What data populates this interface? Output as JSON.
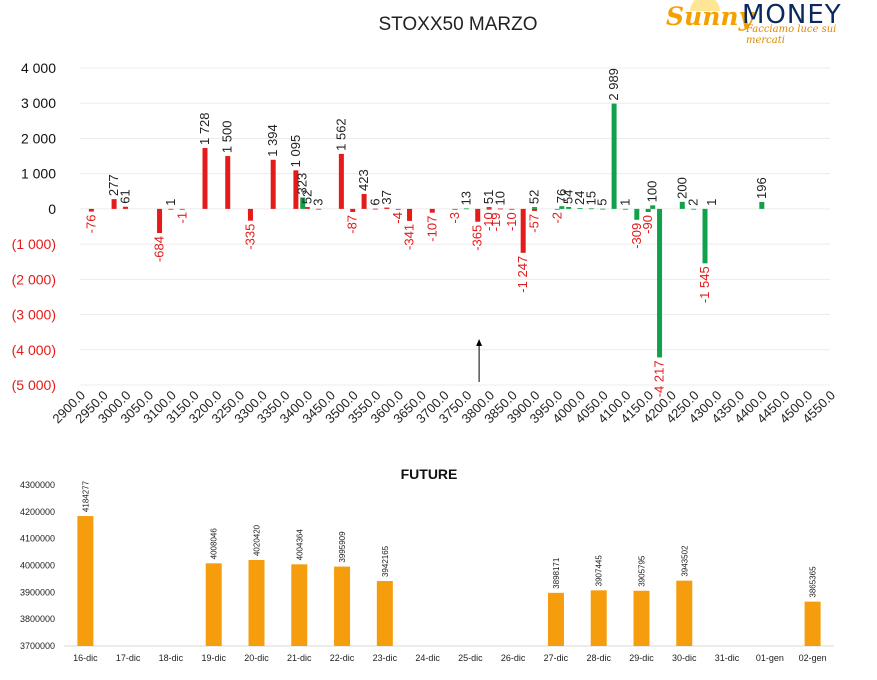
{
  "logo": {
    "brand_first": "Sunny",
    "brand_second": "MONEY",
    "tagline": "Facciamo luce sui mercati",
    "colors": {
      "sunny": "#f5a000",
      "money": "#0a2a5e"
    }
  },
  "chart_data": [
    {
      "type": "bar",
      "title": "STOXX50 MARZO",
      "xlabel": "",
      "ylabel": "",
      "ylim": [
        -5000,
        4000
      ],
      "yticks": [
        4000,
        3000,
        2000,
        1000,
        0,
        -1000,
        -2000,
        -3000,
        -4000,
        -5000
      ],
      "ytick_labels": [
        "4 000",
        "3 000",
        "2 000",
        "1 000",
        "0",
        "(1 000)",
        "(2 000)",
        "(3 000)",
        "(4 000)",
        "(5 000)"
      ],
      "categories": [
        "2900.0",
        "2950.0",
        "3000.0",
        "3050.0",
        "3100.0",
        "3150.0",
        "3200.0",
        "3250.0",
        "3300.0",
        "3350.0",
        "3400.0",
        "3450.0",
        "3500.0",
        "3550.0",
        "3600.0",
        "3650.0",
        "3700.0",
        "3750.0",
        "3800.0",
        "3850.0",
        "3900.0",
        "3950.0",
        "4000.0",
        "4050.0",
        "4100.0",
        "4150.0",
        "4200.0",
        "4250.0",
        "4300.0",
        "4350.0",
        "4400.0",
        "4450.0",
        "4500.0",
        "4550.0"
      ],
      "grid": true,
      "annotation": "arrow pointing up at strike 3800",
      "colors": {
        "red_series": "#e31b1b",
        "green_series": "#12a14b",
        "negative_label": "#e31b1b",
        "positive_label": "#222222"
      },
      "series": [
        {
          "color": "red",
          "points": [
            {
              "x": 2925,
              "v": -76,
              "label": "-76"
            },
            {
              "x": 2975,
              "v": 277,
              "label": "277"
            },
            {
              "x": 3000,
              "v": 61,
              "label": "61"
            },
            {
              "x": 3075,
              "v": -684,
              "label": "-684"
            },
            {
              "x": 3100,
              "v": 1,
              "label": "1"
            },
            {
              "x": 3125,
              "v": -1,
              "label": "-1"
            },
            {
              "x": 3175,
              "v": 1728,
              "label": "1 728"
            },
            {
              "x": 3225,
              "v": 1500,
              "label": "1 500"
            },
            {
              "x": 3275,
              "v": -335,
              "label": "-335"
            },
            {
              "x": 3325,
              "v": 1394,
              "label": "1 394"
            },
            {
              "x": 3375,
              "v": 1095,
              "label": "1 095"
            },
            {
              "x": 3400,
              "v": 52,
              "label": "52"
            },
            {
              "x": 3425,
              "v": 3,
              "label": "3"
            },
            {
              "x": 3475,
              "v": 1562,
              "label": "1 562"
            },
            {
              "x": 3500,
              "v": -87,
              "label": "-87"
            },
            {
              "x": 3525,
              "v": 423,
              "label": "423"
            },
            {
              "x": 3550,
              "v": 6,
              "label": "6"
            },
            {
              "x": 3575,
              "v": 37,
              "label": "37"
            },
            {
              "x": 3600,
              "v": -4,
              "label": "-4"
            },
            {
              "x": 3625,
              "v": -341,
              "label": "-341"
            },
            {
              "x": 3675,
              "v": -107,
              "label": "-107"
            },
            {
              "x": 3725,
              "v": -3,
              "label": "-3"
            },
            {
              "x": 3775,
              "v": -365,
              "label": "-365"
            },
            {
              "x": 3800,
              "v": 51,
              "label": "51"
            },
            {
              "x": 3825,
              "v": 10,
              "label": "10"
            },
            {
              "x": 3850,
              "v": -10,
              "label": "-10"
            },
            {
              "x": 3875,
              "v": -1247,
              "label": "-1 247"
            },
            {
              "x": 3900,
              "v": -57,
              "label": "-57"
            }
          ]
        },
        {
          "color": "green",
          "points": [
            {
              "x": 3390,
              "v": 323,
              "label": "323"
            },
            {
              "x": 3750,
              "v": 13,
              "label": "13"
            },
            {
              "x": 3800,
              "v": -10,
              "label": "-10"
            },
            {
              "x": 3900,
              "v": 52,
              "label": "52"
            },
            {
              "x": 3950,
              "v": -2,
              "label": "-2"
            },
            {
              "x": 3960,
              "v": 76,
              "label": "76"
            },
            {
              "x": 3975,
              "v": 54,
              "label": "54"
            },
            {
              "x": 4000,
              "v": 24,
              "label": "24"
            },
            {
              "x": 4025,
              "v": 15,
              "label": "15"
            },
            {
              "x": 4050,
              "v": 5,
              "label": "5"
            },
            {
              "x": 4075,
              "v": 2989,
              "label": "2 989"
            },
            {
              "x": 4100,
              "v": 1,
              "label": "1"
            },
            {
              "x": 4125,
              "v": -309,
              "label": "-309"
            },
            {
              "x": 4150,
              "v": -90,
              "label": "-90"
            },
            {
              "x": 4160,
              "v": 100,
              "label": "100"
            },
            {
              "x": 4175,
              "v": -4217,
              "label": "-4 217"
            },
            {
              "x": 4225,
              "v": 200,
              "label": "200"
            },
            {
              "x": 4250,
              "v": 2,
              "label": "2"
            },
            {
              "x": 4275,
              "v": -1545,
              "label": "-1 545"
            },
            {
              "x": 4400,
              "v": 196,
              "label": "196"
            }
          ]
        }
      ],
      "extra_labels": [
        {
          "x": 3815,
          "v": -19,
          "label": "-19"
        },
        {
          "x": 4290,
          "v": 1,
          "label": "1"
        }
      ]
    },
    {
      "type": "bar",
      "title": "FUTURE",
      "xlabel": "",
      "ylabel": "",
      "ylim": [
        3700000,
        4300000
      ],
      "yticks": [
        3700000,
        3800000,
        3900000,
        4000000,
        4100000,
        4200000,
        4300000
      ],
      "ytick_labels": [
        "3700000",
        "3800000",
        "3900000",
        "4000000",
        "4100000",
        "4200000",
        "4300000"
      ],
      "categories": [
        "16-dic",
        "17-dic",
        "18-dic",
        "19-dic",
        "20-dic",
        "21-dic",
        "22-dic",
        "23-dic",
        "24-dic",
        "25-dic",
        "26-dic",
        "27-dic",
        "28-dic",
        "29-dic",
        "30-dic",
        "31-dic",
        "01-gen",
        "02-gen"
      ],
      "values": [
        4184277,
        null,
        null,
        4008046,
        4020420,
        4004364,
        3995909,
        3942165,
        null,
        null,
        null,
        3898171,
        3907445,
        3905795,
        3943502,
        null,
        null,
        3865365
      ],
      "value_labels": [
        "4184277",
        "",
        "",
        "4008046",
        "4020420",
        "4004364",
        "3995909",
        "3942165",
        "",
        "",
        "",
        "3898171",
        "3907445",
        "3905795",
        "3943502",
        "",
        "",
        "3865365"
      ],
      "color": "#f59d0c",
      "grid": false
    }
  ]
}
